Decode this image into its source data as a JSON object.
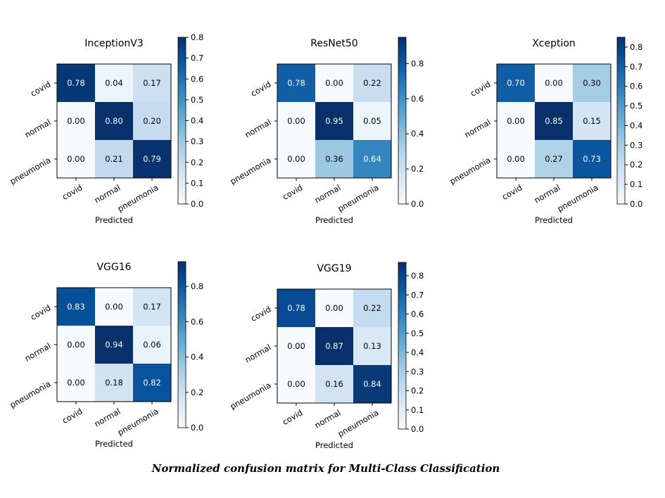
{
  "caption": "Normalized confusion matrix for Multi-Class Classification",
  "colormap": {
    "name": "Blues",
    "stops": [
      "#f7fbff",
      "#deebf7",
      "#c6dbef",
      "#9ecae1",
      "#6baed6",
      "#4292c6",
      "#2171b5",
      "#08519c",
      "#08306b"
    ]
  },
  "chart_data": [
    {
      "type": "heatmap",
      "title": "InceptionV3",
      "xlabel": "Predicted",
      "ylabel": "",
      "x_categories": [
        "covid",
        "normal",
        "pneumonia"
      ],
      "y_categories": [
        "covid",
        "normal",
        "pneumonia"
      ],
      "values": [
        [
          0.78,
          0.04,
          0.17
        ],
        [
          0.0,
          0.8,
          0.2
        ],
        [
          0.0,
          0.21,
          0.79
        ]
      ],
      "colorbar": {
        "range": [
          0.0,
          0.8
        ],
        "ticks": [
          0.0,
          0.1,
          0.2,
          0.3,
          0.4,
          0.5,
          0.6,
          0.7,
          0.8
        ]
      }
    },
    {
      "type": "heatmap",
      "title": "ResNet50",
      "xlabel": "Predicted",
      "ylabel": "",
      "x_categories": [
        "covid",
        "normal",
        "pneumonia"
      ],
      "y_categories": [
        "covid",
        "normal",
        "pneumonia"
      ],
      "values": [
        [
          0.78,
          0.0,
          0.22
        ],
        [
          0.0,
          0.95,
          0.05
        ],
        [
          0.0,
          0.36,
          0.64
        ]
      ],
      "colorbar": {
        "range": [
          0.0,
          0.95
        ],
        "ticks": [
          0.0,
          0.2,
          0.4,
          0.6,
          0.8
        ]
      }
    },
    {
      "type": "heatmap",
      "title": "Xception",
      "xlabel": "Predicted",
      "ylabel": "",
      "x_categories": [
        "covid",
        "normal",
        "pneumonia"
      ],
      "y_categories": [
        "covid",
        "normal",
        "pneumonia"
      ],
      "values": [
        [
          0.7,
          0.0,
          0.3
        ],
        [
          0.0,
          0.85,
          0.15
        ],
        [
          0.0,
          0.27,
          0.73
        ]
      ],
      "colorbar": {
        "range": [
          0.0,
          0.85
        ],
        "ticks": [
          0.0,
          0.1,
          0.2,
          0.3,
          0.4,
          0.5,
          0.6,
          0.7,
          0.8
        ]
      }
    },
    {
      "type": "heatmap",
      "title": "VGG16",
      "xlabel": "Predicted",
      "ylabel": "",
      "x_categories": [
        "covid",
        "normal",
        "pneumonia"
      ],
      "y_categories": [
        "covid",
        "normal",
        "pneumonia"
      ],
      "values": [
        [
          0.83,
          0.0,
          0.17
        ],
        [
          0.0,
          0.94,
          0.06
        ],
        [
          0.0,
          0.18,
          0.82
        ]
      ],
      "colorbar": {
        "range": [
          0.0,
          0.94
        ],
        "ticks": [
          0.0,
          0.2,
          0.4,
          0.6,
          0.8
        ]
      }
    },
    {
      "type": "heatmap",
      "title": "VGG19",
      "xlabel": "Predicted",
      "ylabel": "",
      "x_categories": [
        "covid",
        "normal",
        "pneumonia"
      ],
      "y_categories": [
        "covid",
        "normal",
        "pneumonia"
      ],
      "values": [
        [
          0.78,
          0.0,
          0.22
        ],
        [
          0.0,
          0.87,
          0.13
        ],
        [
          0.0,
          0.16,
          0.84
        ]
      ],
      "colorbar": {
        "range": [
          0.0,
          0.87
        ],
        "ticks": [
          0.0,
          0.1,
          0.2,
          0.3,
          0.4,
          0.5,
          0.6,
          0.7,
          0.8
        ]
      }
    }
  ]
}
